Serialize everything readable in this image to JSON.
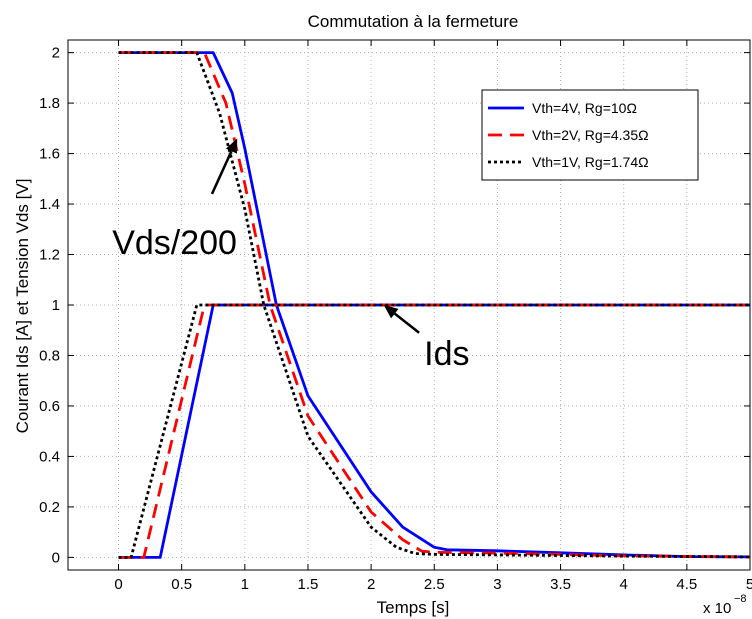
{
  "chart_data": {
    "type": "line",
    "title": "Commutation à la fermeture",
    "xlabel": "Temps [s]",
    "ylabel": "Courant Ids [A] et Tension Vds [V]",
    "x_multiplier": "x 10",
    "x_exponent": "−8",
    "xlim": [
      -0.4,
      5.0
    ],
    "ylim": [
      -0.05,
      2.05
    ],
    "xticks": [
      0,
      0.5,
      1,
      1.5,
      2,
      2.5,
      3,
      3.5,
      4,
      4.5,
      5
    ],
    "xtick_labels": [
      "0",
      "0.5",
      "1",
      "1.5",
      "2",
      "2.5",
      "3",
      "3.5",
      "4",
      "4.5",
      "5"
    ],
    "yticks": [
      0,
      0.2,
      0.4,
      0.6,
      0.8,
      1,
      1.2,
      1.4,
      1.6,
      1.8,
      2
    ],
    "ytick_labels": [
      "0",
      "0.2",
      "0.4",
      "0.6",
      "0.8",
      "1",
      "1.2",
      "1.4",
      "1.6",
      "1.8",
      "2"
    ],
    "grid": true,
    "legend_position": "top-right",
    "series": [
      {
        "name": "Vth=4V, Rg=10Ω",
        "color": "#0000ff",
        "dash": "solid",
        "current": [
          [
            0,
            0
          ],
          [
            0.33,
            0
          ],
          [
            0.75,
            1
          ],
          [
            5.0,
            1
          ]
        ],
        "voltage": [
          [
            0,
            2
          ],
          [
            0.75,
            2
          ],
          [
            0.9,
            1.84
          ],
          [
            1.0,
            1.62
          ],
          [
            1.25,
            1.0
          ],
          [
            1.5,
            0.64
          ],
          [
            2.0,
            0.26
          ],
          [
            2.25,
            0.12
          ],
          [
            2.5,
            0.04
          ],
          [
            2.6,
            0.03
          ],
          [
            3.0,
            0.026
          ],
          [
            3.5,
            0.018
          ],
          [
            4.0,
            0.01
          ],
          [
            4.5,
            0.003
          ],
          [
            5.0,
            0.002
          ]
        ]
      },
      {
        "name": "Vth=2V, Rg=4.35Ω",
        "color": "#ff0000",
        "dash": "dashed",
        "current": [
          [
            0,
            0
          ],
          [
            0.2,
            0
          ],
          [
            0.68,
            1
          ],
          [
            5.0,
            1
          ]
        ],
        "voltage": [
          [
            0,
            2
          ],
          [
            0.68,
            2
          ],
          [
            0.85,
            1.8
          ],
          [
            1.0,
            1.48
          ],
          [
            1.2,
            1.0
          ],
          [
            1.5,
            0.56
          ],
          [
            2.0,
            0.18
          ],
          [
            2.25,
            0.07
          ],
          [
            2.4,
            0.025
          ],
          [
            2.5,
            0.02
          ],
          [
            3.0,
            0.017
          ],
          [
            3.5,
            0.012
          ],
          [
            4.0,
            0.006
          ],
          [
            5.0,
            0.002
          ]
        ]
      },
      {
        "name": "Vth=1V, Rg=1.74Ω",
        "color": "#000000",
        "dash": "dotted",
        "current": [
          [
            0,
            0
          ],
          [
            0.1,
            0
          ],
          [
            0.62,
            1
          ],
          [
            5.0,
            1
          ]
        ],
        "voltage": [
          [
            0,
            2
          ],
          [
            0.62,
            2
          ],
          [
            0.8,
            1.76
          ],
          [
            1.0,
            1.38
          ],
          [
            1.15,
            1.0
          ],
          [
            1.5,
            0.48
          ],
          [
            2.0,
            0.12
          ],
          [
            2.2,
            0.04
          ],
          [
            2.35,
            0.015
          ],
          [
            2.5,
            0.012
          ],
          [
            3.0,
            0.01
          ],
          [
            4.0,
            0.005
          ],
          [
            5.0,
            0.002
          ]
        ]
      }
    ],
    "annotations": [
      {
        "text": "Vds/200",
        "label_at": [
          -0.05,
          1.25
        ],
        "arrow_from": [
          0.74,
          1.44
        ],
        "arrow_to": [
          0.94,
          1.66
        ]
      },
      {
        "text": "Ids",
        "label_at": [
          2.42,
          0.81
        ],
        "arrow_from": [
          2.38,
          0.89
        ],
        "arrow_to": [
          2.1,
          1.0
        ]
      }
    ]
  }
}
